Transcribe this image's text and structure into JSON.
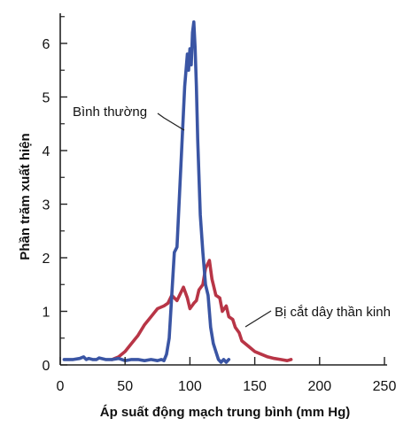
{
  "chart_data": {
    "type": "line",
    "title": "",
    "xlabel": "Áp suất động mạch trung bình (mm Hg)",
    "ylabel": "Phần trăm xuất hiện",
    "xlim": [
      0,
      250
    ],
    "ylim": [
      0,
      6.5
    ],
    "x_ticks": [
      0,
      50,
      100,
      150,
      200,
      250
    ],
    "y_ticks": [
      0,
      1,
      2,
      3,
      4,
      5,
      6
    ],
    "grid": false,
    "legend": "none",
    "series": [
      {
        "name": "Bình thường",
        "color": "#3a55a4",
        "x": [
          3,
          10,
          15,
          18,
          20,
          22,
          25,
          28,
          30,
          35,
          40,
          45,
          50,
          55,
          60,
          65,
          70,
          75,
          78,
          80,
          82,
          84,
          86,
          88,
          90,
          92,
          94,
          96,
          98,
          99,
          100,
          101,
          102,
          103,
          104,
          105,
          106,
          108,
          110,
          112,
          114,
          116,
          118,
          120,
          122,
          124,
          126,
          128,
          130
        ],
        "y": [
          0.1,
          0.1,
          0.12,
          0.15,
          0.1,
          0.12,
          0.1,
          0.1,
          0.13,
          0.1,
          0.1,
          0.12,
          0.08,
          0.1,
          0.1,
          0.08,
          0.1,
          0.08,
          0.1,
          0.08,
          0.2,
          0.5,
          1.3,
          2.1,
          2.2,
          3.2,
          4.2,
          5.2,
          5.8,
          5.5,
          5.9,
          5.6,
          6.2,
          6.4,
          5.9,
          5.2,
          4.2,
          2.8,
          2.1,
          1.5,
          1.3,
          0.7,
          0.4,
          0.25,
          0.1,
          0.05,
          0.1,
          0.05,
          0.1
        ]
      },
      {
        "name": "Bị cắt dây thần kinh",
        "color": "#b83546",
        "x": [
          40,
          45,
          50,
          55,
          60,
          65,
          70,
          75,
          80,
          83,
          86,
          90,
          95,
          98,
          100,
          103,
          105,
          107,
          110,
          112,
          115,
          117,
          118,
          120,
          123,
          125,
          128,
          130,
          133,
          135,
          138,
          140,
          145,
          150,
          155,
          160,
          165,
          170,
          175,
          178
        ],
        "y": [
          0.1,
          0.15,
          0.25,
          0.4,
          0.55,
          0.75,
          0.9,
          1.05,
          1.1,
          1.15,
          1.3,
          1.2,
          1.45,
          1.25,
          1.05,
          1.15,
          1.2,
          1.4,
          1.5,
          1.8,
          1.95,
          1.6,
          1.5,
          1.3,
          1.25,
          1.0,
          1.1,
          0.9,
          0.85,
          0.7,
          0.6,
          0.45,
          0.35,
          0.25,
          0.2,
          0.15,
          0.12,
          0.1,
          0.08,
          0.1
        ]
      }
    ],
    "annotations": [
      {
        "text": "Bình thường",
        "series": 0
      },
      {
        "text": "Bị cắt dây thần kinh",
        "series": 1
      }
    ]
  }
}
